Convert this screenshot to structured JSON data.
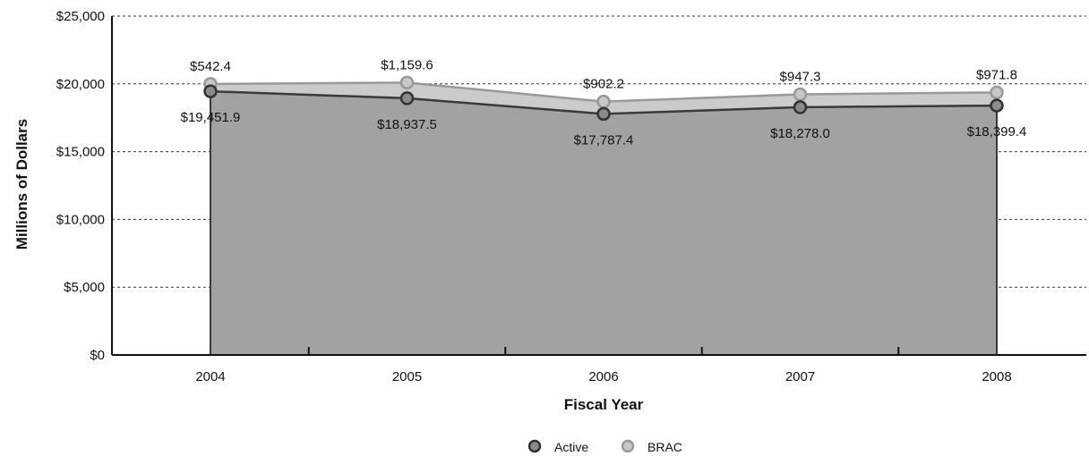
{
  "chart_data": {
    "type": "area",
    "stacked": true,
    "categories": [
      "2004",
      "2005",
      "2006",
      "2007",
      "2008"
    ],
    "series": [
      {
        "name": "Active",
        "values": [
          19451.9,
          18937.5,
          17787.4,
          18278.0,
          18399.4
        ],
        "labels": [
          "$19,451.9",
          "$18,937.5",
          "$17,787.4",
          "$18,278.0",
          "$18,399.4"
        ]
      },
      {
        "name": "BRAC",
        "values": [
          542.4,
          1159.6,
          902.2,
          947.3,
          971.8
        ],
        "labels": [
          "$542.4",
          "$1,159.6",
          "$902.2",
          "$947.3",
          "$971.8"
        ]
      }
    ],
    "ylim": [
      0,
      25000
    ],
    "yticks": [
      0,
      5000,
      10000,
      15000,
      20000,
      25000
    ],
    "ytick_labels": [
      "$0",
      "$5,000",
      "$10,000",
      "$15,000",
      "$20,000",
      "$25,000"
    ],
    "xlabel": "Fiscal Year",
    "ylabel": "Millions of Dollars",
    "grid": "horizontal dashed",
    "legend_position": "bottom-center",
    "colors": {
      "active_fill": "#a2a2a2",
      "active_marker": "#8a8a8a",
      "brac_fill": "#cbcbcb",
      "brac_marker": "#c8c8c8",
      "line": "#3a3a3a"
    }
  }
}
